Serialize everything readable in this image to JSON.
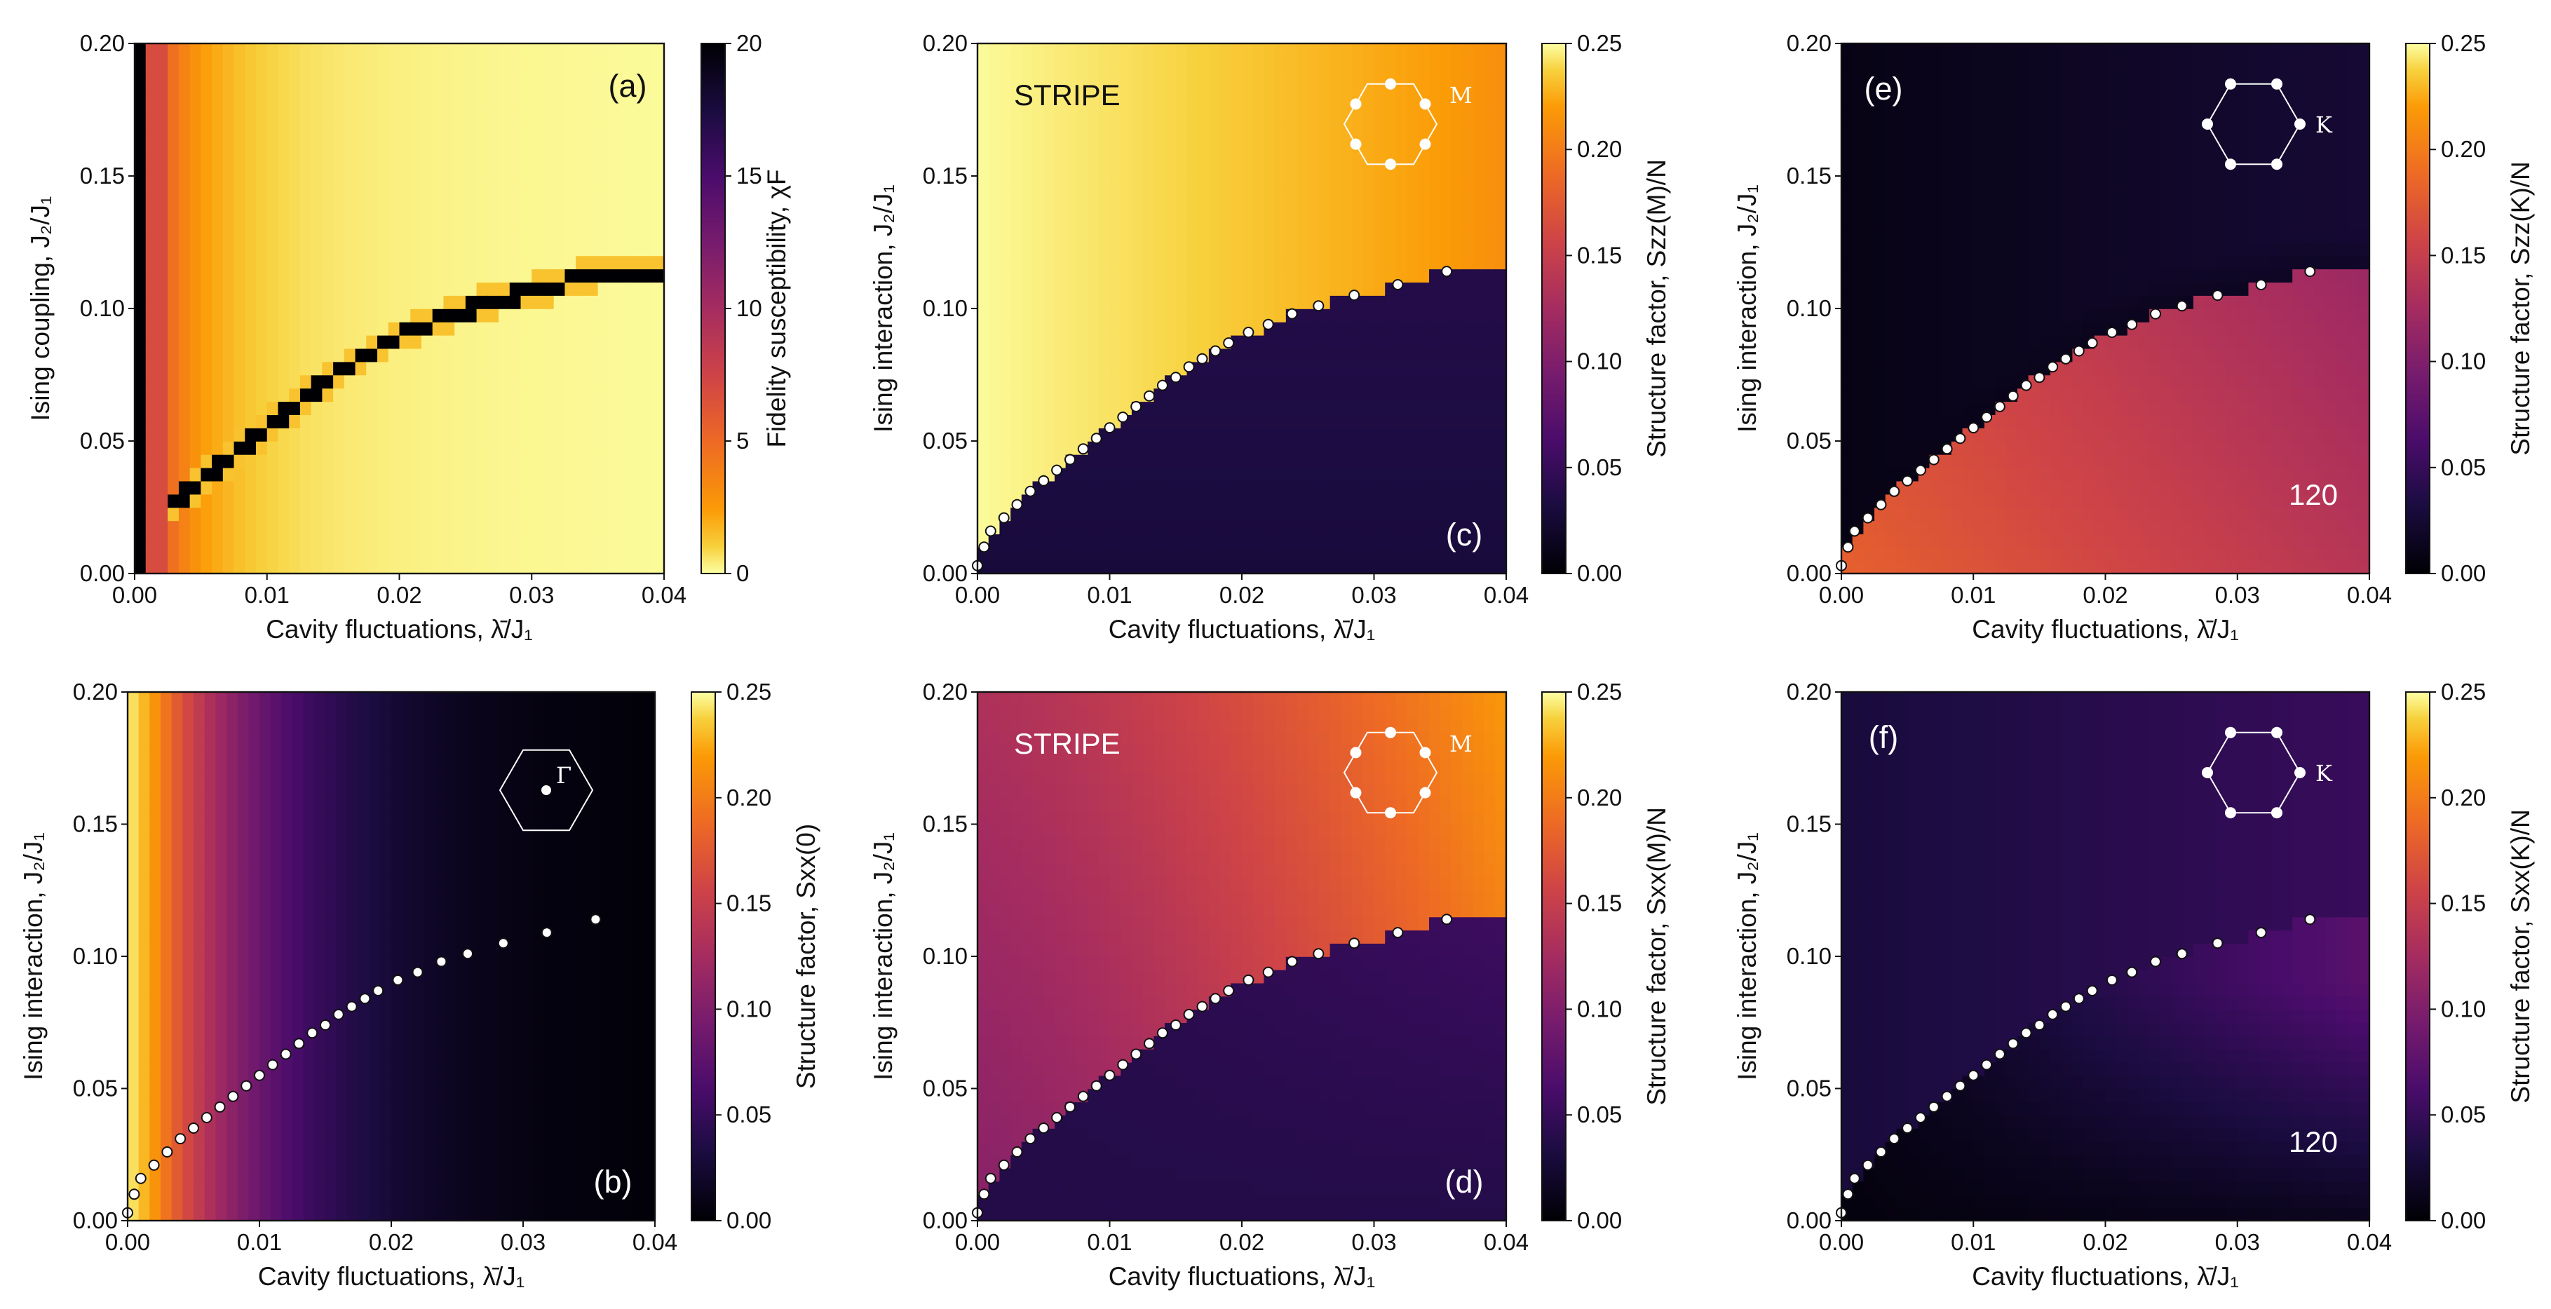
{
  "figure": {
    "xlabel": "Cavity fluctuations, λ̄/J₁",
    "colorbar_ticks_a": [
      "0",
      "5",
      "10",
      "15",
      "20"
    ],
    "colorbar_ticks_s": [
      "0.00",
      "0.05",
      "0.10",
      "0.15",
      "0.20",
      "0.25"
    ],
    "x_ticks": [
      "0.00",
      "0.01",
      "0.02",
      "0.03",
      "0.04"
    ],
    "y_ticks": [
      "0.00",
      "0.05",
      "0.10",
      "0.15",
      "0.20"
    ]
  },
  "chart_data": [
    {
      "panel": "(a)",
      "type": "heatmap",
      "xlabel": "Cavity fluctuations, λ̄/J₁",
      "ylabel": "Ising coupling, J₂/J₁",
      "colorbar_label": "Fidelity susceptibility, χF",
      "colormap": "inferno_r",
      "xlim": [
        0,
        0.04
      ],
      "ylim": [
        0,
        0.2
      ],
      "clim": [
        0,
        20
      ],
      "region_labels": [],
      "bz_inset": null
    },
    {
      "panel": "(b)",
      "type": "heatmap",
      "xlabel": "Cavity fluctuations, λ̄/J₁",
      "ylabel": "Ising interaction, J₂/J₁",
      "colorbar_label": "Structure factor, Sxx(0)",
      "colormap": "inferno",
      "xlim": [
        0,
        0.04
      ],
      "ylim": [
        0,
        0.2
      ],
      "clim": [
        0,
        0.25
      ],
      "region_labels": [],
      "bz_inset": "Γ"
    },
    {
      "panel": "(c)",
      "type": "heatmap",
      "xlabel": "Cavity fluctuations, λ̄/J₁",
      "ylabel": "Ising interaction, J₂/J₁",
      "colorbar_label": "Structure factor, Szz(M)/N",
      "colormap": "inferno",
      "xlim": [
        0,
        0.04
      ],
      "ylim": [
        0,
        0.2
      ],
      "clim": [
        0,
        0.25
      ],
      "region_labels": [
        "STRIPE"
      ],
      "bz_inset": "M"
    },
    {
      "panel": "(d)",
      "type": "heatmap",
      "xlabel": "Cavity fluctuations, λ̄/J₁",
      "ylabel": "Ising interaction, J₂/J₁",
      "colorbar_label": "Structure factor, Sxx(M)/N",
      "colormap": "inferno",
      "xlim": [
        0,
        0.04
      ],
      "ylim": [
        0,
        0.2
      ],
      "clim": [
        0,
        0.25
      ],
      "region_labels": [
        "STRIPE"
      ],
      "bz_inset": "M"
    },
    {
      "panel": "(e)",
      "type": "heatmap",
      "xlabel": "Cavity fluctuations, λ̄/J₁",
      "ylabel": "Ising interaction, J₂/J₁",
      "colorbar_label": "Structure factor, Szz(K)/N",
      "colormap": "inferno",
      "xlim": [
        0,
        0.04
      ],
      "ylim": [
        0,
        0.2
      ],
      "clim": [
        0,
        0.25
      ],
      "region_labels": [
        "120"
      ],
      "bz_inset": "K"
    },
    {
      "panel": "(f)",
      "type": "heatmap",
      "xlabel": "Cavity fluctuations, λ̄/J₁",
      "ylabel": "Ising interaction, J₂/J₁",
      "colorbar_label": "Structure factor, Sxx(K)/N",
      "colormap": "inferno",
      "xlim": [
        0,
        0.04
      ],
      "ylim": [
        0,
        0.2
      ],
      "clim": [
        0,
        0.25
      ],
      "region_labels": [
        "120"
      ],
      "bz_inset": "K"
    }
  ],
  "phase_boundary": {
    "x": [
      0.0,
      0.0005,
      0.001,
      0.002,
      0.003,
      0.004,
      0.005,
      0.006,
      0.007,
      0.008,
      0.009,
      0.01,
      0.011,
      0.012,
      0.013,
      0.014,
      0.015,
      0.016,
      0.017,
      0.018,
      0.019,
      0.0205,
      0.022,
      0.0238,
      0.0258,
      0.0285,
      0.0318,
      0.0355
    ],
    "y": [
      0.003,
      0.01,
      0.016,
      0.021,
      0.026,
      0.031,
      0.035,
      0.039,
      0.043,
      0.047,
      0.051,
      0.055,
      0.059,
      0.063,
      0.067,
      0.071,
      0.074,
      0.078,
      0.081,
      0.084,
      0.087,
      0.091,
      0.094,
      0.098,
      0.101,
      0.105,
      0.109,
      0.114
    ]
  }
}
